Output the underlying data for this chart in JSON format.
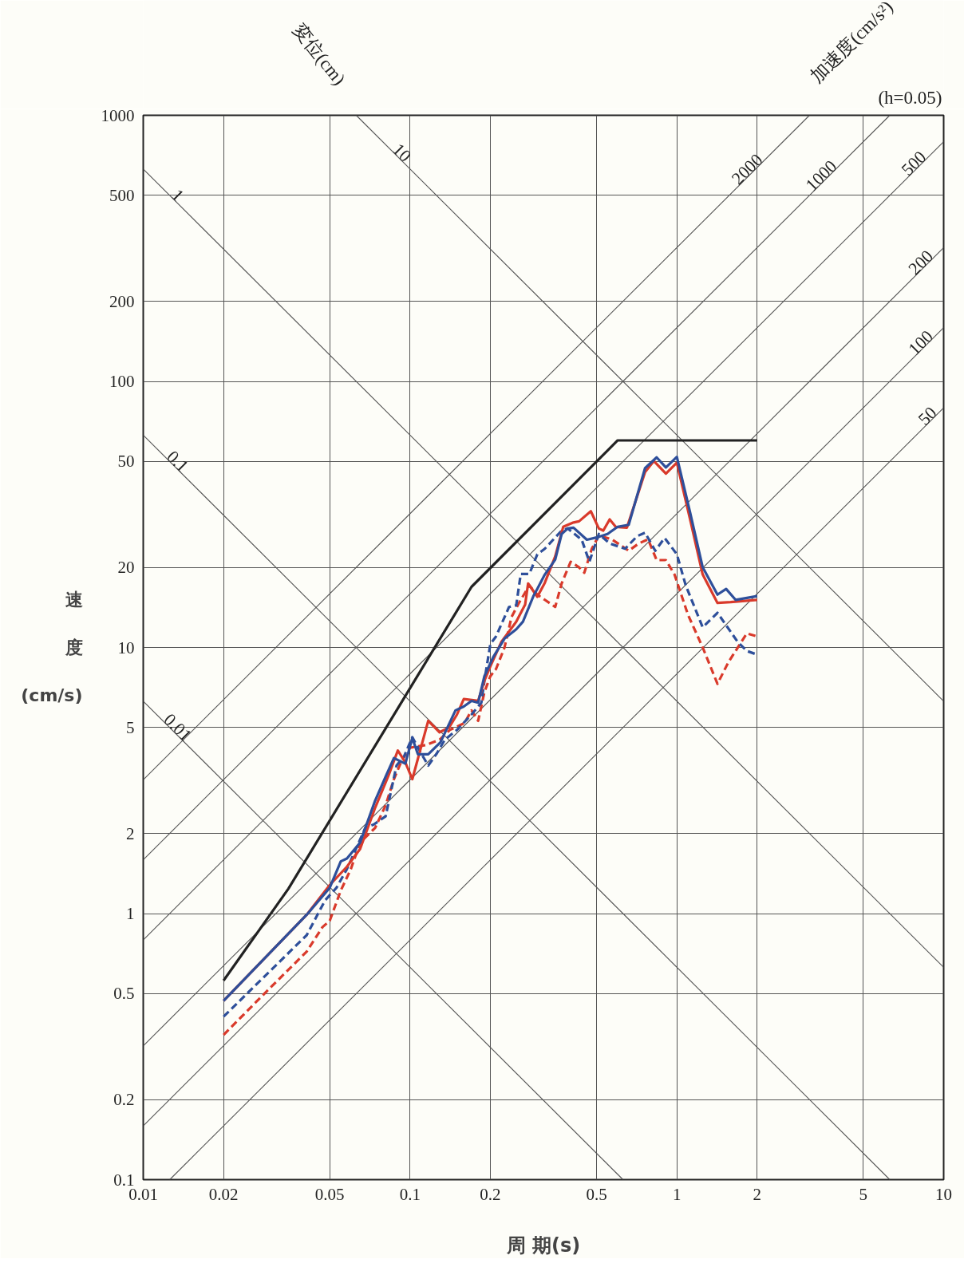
{
  "chart_data": {
    "type": "line",
    "xlabel": "周 期(s)",
    "ylabel": "速度(cm/s)",
    "log": "xy",
    "grid": true,
    "xlim": [
      0.01,
      10
    ],
    "ylim": [
      0.1,
      1000
    ],
    "xticks": [
      0.01,
      0.02,
      0.05,
      0.1,
      0.2,
      0.5,
      1,
      2,
      5,
      10
    ],
    "yticks": [
      0.1,
      0.2,
      0.5,
      1,
      2,
      5,
      10,
      20,
      50,
      100,
      200,
      500,
      1000
    ],
    "annotations": [
      "変位(cm)",
      "加速度(cm/s²)",
      "(h=0.05)",
      {
        "text": "1",
        "x": 0.013,
        "y": 483
      },
      {
        "text": "10",
        "x": 0.09,
        "y": 698
      },
      {
        "text": "0.1",
        "x": 0.013,
        "y": 48.3
      },
      {
        "text": "0.01",
        "x": 0.013,
        "y": 4.83
      },
      {
        "text": "2000",
        "x": 1.9,
        "y": 605
      },
      {
        "text": "1000",
        "x": 3.6,
        "y": 573
      },
      {
        "text": "500",
        "x": 8,
        "y": 637
      },
      {
        "text": "200",
        "x": 8.5,
        "y": 270
      },
      {
        "text": "100",
        "x": 8.5,
        "y": 135
      },
      {
        "text": "50",
        "x": 9,
        "y": 71.6
      }
    ],
    "series": [
      {
        "type": "line",
        "color": "#555555",
        "x": [
          0.01,
          10
        ],
        "values": [
          628.3,
          0.6283
        ]
      },
      {
        "type": "line",
        "color": "#555555",
        "x": [
          0.06283,
          10
        ],
        "values": [
          1000,
          6.283
        ]
      },
      {
        "type": "line",
        "color": "#555555",
        "x": [
          0.01,
          6.283
        ],
        "values": [
          62.83,
          0.1
        ]
      },
      {
        "type": "line",
        "color": "#555555",
        "x": [
          0.01,
          0.6283
        ],
        "values": [
          6.283,
          0.1
        ]
      },
      {
        "type": "line",
        "color": "#555555",
        "x": [
          0.01257,
          10
        ],
        "values": [
          0.1,
          79.58
        ]
      },
      {
        "type": "line",
        "color": "#555555",
        "x": [
          0.01,
          10
        ],
        "values": [
          0.1592,
          159.2
        ]
      },
      {
        "type": "line",
        "color": "#555555",
        "x": [
          0.01,
          10
        ],
        "values": [
          0.3183,
          318.3
        ]
      },
      {
        "type": "line",
        "color": "#555555",
        "x": [
          0.01,
          10
        ],
        "values": [
          0.7958,
          795.8
        ]
      },
      {
        "type": "line",
        "color": "#555555",
        "x": [
          0.01,
          6.283
        ],
        "values": [
          1.592,
          1000
        ]
      },
      {
        "type": "line",
        "color": "#555555",
        "x": [
          0.01,
          3.142
        ],
        "values": [
          3.183,
          1000
        ]
      },
      {
        "color": "#d93a2b",
        "line_style": "dashed",
        "x": [
          0.02,
          0.029,
          0.041,
          0.047,
          0.05,
          0.055,
          0.06,
          0.065,
          0.074,
          0.081,
          0.087,
          0.093,
          0.1,
          0.115,
          0.129,
          0.141,
          0.16,
          0.17,
          0.18,
          0.19,
          0.2,
          0.21,
          0.226,
          0.24,
          0.255,
          0.28,
          0.3,
          0.32,
          0.35,
          0.37,
          0.4,
          0.43,
          0.45,
          0.48,
          0.51,
          0.57,
          0.66,
          0.72,
          0.78,
          0.84,
          0.91,
          0.98,
          1.1,
          1.25,
          1.42,
          1.56,
          1.83,
          2.0
        ],
        "values": [
          0.35,
          0.51,
          0.72,
          0.89,
          0.94,
          1.22,
          1.47,
          1.85,
          2.1,
          2.55,
          3.2,
          3.75,
          4.2,
          4.3,
          4.5,
          4.9,
          5.2,
          5.8,
          5.3,
          6.8,
          7.8,
          8.3,
          10,
          13,
          14.6,
          17.1,
          15.8,
          15.1,
          14.2,
          17.4,
          21,
          20,
          19.1,
          23.5,
          26.3,
          25.5,
          23.1,
          24.6,
          25.5,
          21.3,
          21.3,
          18.8,
          13.3,
          10,
          7.3,
          8.8,
          11.3,
          11.0
        ]
      },
      {
        "color": "#2e4f9a",
        "line_style": "dashed",
        "x": [
          0.02,
          0.041,
          0.048,
          0.053,
          0.058,
          0.068,
          0.073,
          0.081,
          0.089,
          0.095,
          0.102,
          0.11,
          0.117,
          0.126,
          0.135,
          0.15,
          0.17,
          0.185,
          0.19,
          0.2,
          0.21,
          0.235,
          0.25,
          0.26,
          0.28,
          0.3,
          0.32,
          0.37,
          0.39,
          0.44,
          0.47,
          0.51,
          0.56,
          0.64,
          0.71,
          0.76,
          0.83,
          0.9,
          1.0,
          1.08,
          1.25,
          1.42,
          1.69,
          1.83,
          2.0
        ],
        "values": [
          0.41,
          0.83,
          1.12,
          1.25,
          1.47,
          2.1,
          2.16,
          2.32,
          3.6,
          3.9,
          4.6,
          4.0,
          3.6,
          4.0,
          4.5,
          4.9,
          5.6,
          6.2,
          7.5,
          10.3,
          11,
          14.2,
          14.4,
          18.9,
          18.9,
          22.4,
          23.5,
          27.5,
          28,
          25.4,
          21,
          26.7,
          24.6,
          23.5,
          26.2,
          27,
          23.1,
          25.8,
          22.4,
          17.1,
          11.9,
          13.5,
          10.5,
          9.7,
          9.4
        ]
      },
      {
        "color": "#d93a2b",
        "line_style": "solid",
        "x": [
          0.02,
          0.041,
          0.05,
          0.058,
          0.065,
          0.074,
          0.083,
          0.09,
          0.096,
          0.102,
          0.117,
          0.129,
          0.14,
          0.15,
          0.159,
          0.18,
          0.19,
          0.2,
          0.22,
          0.25,
          0.27,
          0.277,
          0.3,
          0.32,
          0.35,
          0.375,
          0.41,
          0.43,
          0.476,
          0.51,
          0.53,
          0.56,
          0.59,
          0.65,
          0.76,
          0.82,
          0.91,
          1.0,
          1.13,
          1.25,
          1.42,
          1.59,
          2.0
        ],
        "values": [
          0.47,
          0.99,
          1.28,
          1.5,
          1.75,
          2.5,
          3.3,
          4.1,
          3.7,
          3.2,
          5.3,
          4.8,
          5.0,
          5.6,
          6.4,
          6.3,
          7.5,
          8.5,
          10.5,
          12.5,
          14.5,
          17.4,
          15.5,
          17.5,
          22,
          28.4,
          29.5,
          29.8,
          32.5,
          28,
          27.5,
          30.3,
          28.4,
          28.2,
          45.6,
          50.2,
          45,
          49.5,
          29.3,
          18.8,
          14.7,
          14.8,
          15.1
        ]
      },
      {
        "color": "#2e4f9a",
        "line_style": "solid",
        "x": [
          0.02,
          0.041,
          0.05,
          0.055,
          0.058,
          0.065,
          0.074,
          0.081,
          0.087,
          0.096,
          0.102,
          0.107,
          0.117,
          0.13,
          0.148,
          0.159,
          0.17,
          0.18,
          0.19,
          0.205,
          0.226,
          0.25,
          0.265,
          0.29,
          0.3,
          0.32,
          0.35,
          0.37,
          0.39,
          0.41,
          0.46,
          0.5,
          0.55,
          0.6,
          0.66,
          0.76,
          0.84,
          0.91,
          1.0,
          1.12,
          1.25,
          1.42,
          1.53,
          1.66,
          2.0
        ],
        "values": [
          0.47,
          0.99,
          1.25,
          1.57,
          1.61,
          1.85,
          2.66,
          3.27,
          3.84,
          3.66,
          4.57,
          3.97,
          3.97,
          4.4,
          5.8,
          6.0,
          6.3,
          6.2,
          7.8,
          9.2,
          10.8,
          11.7,
          12.5,
          15.6,
          16.6,
          18.8,
          21.4,
          26.7,
          28,
          28.2,
          25.4,
          25.9,
          26.7,
          28.4,
          28.9,
          47.2,
          51.8,
          47.5,
          52,
          32.3,
          20.0,
          15.8,
          16.6,
          15.1,
          15.6
        ]
      },
      {
        "color": "#222222",
        "line_style": "solid",
        "x": [
          0.02,
          0.035,
          0.17,
          0.6,
          2.0
        ],
        "values": [
          0.56,
          1.24,
          16.9,
          60,
          60
        ]
      }
    ]
  }
}
